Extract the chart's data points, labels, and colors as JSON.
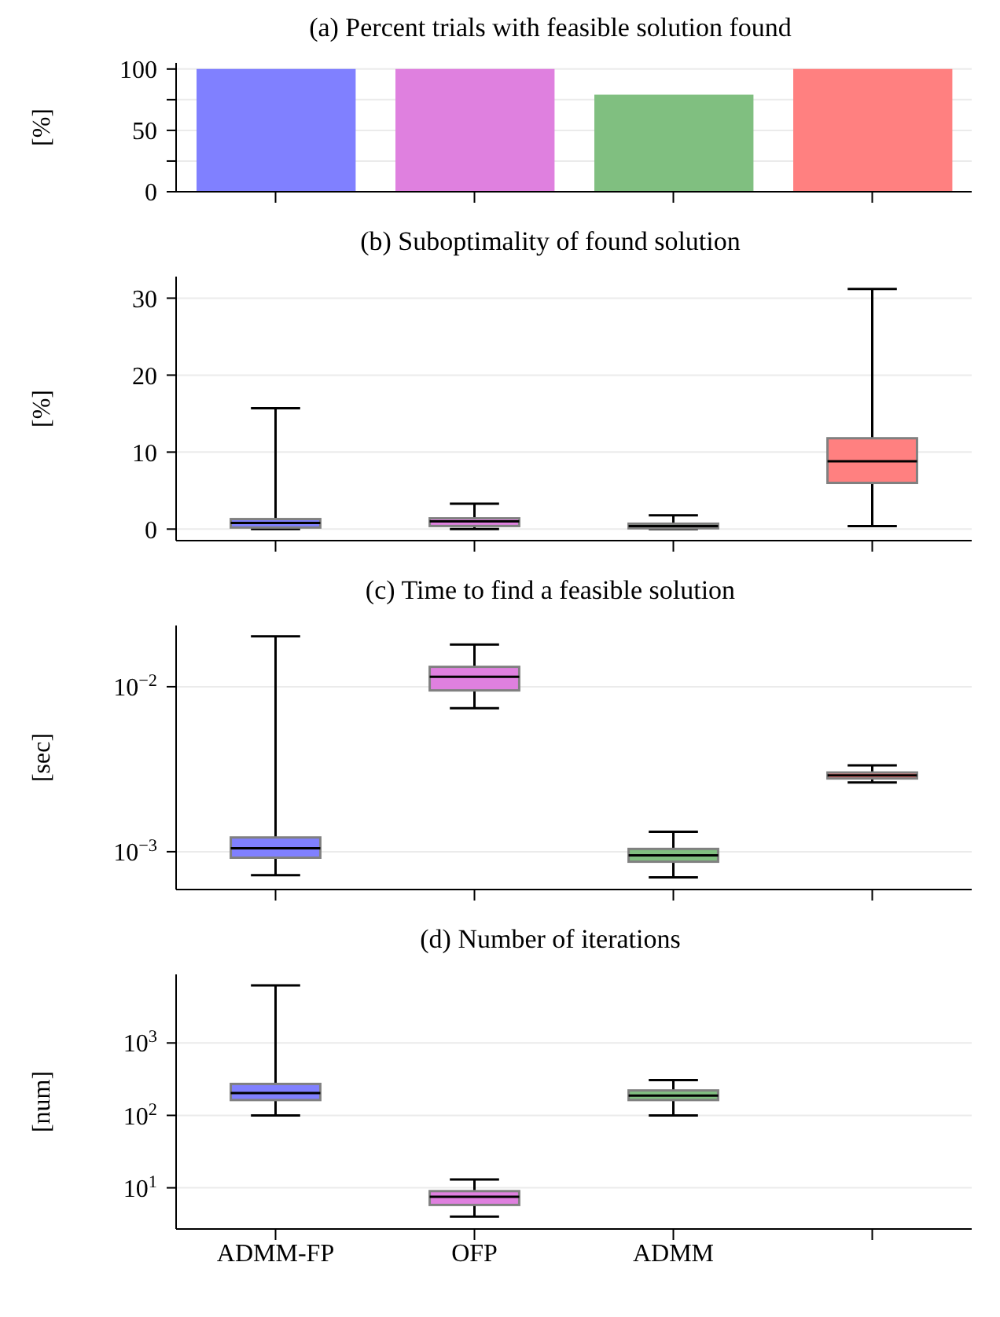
{
  "chart_data": [
    {
      "type": "bar",
      "title": "(a) Percent trials with feasible solution found",
      "ylabel": "[%]",
      "categories": [
        null,
        null,
        null,
        null
      ],
      "values": [
        100,
        100,
        79,
        100
      ],
      "colors": [
        "#8080ff",
        "#df80df",
        "#80bf80",
        "#ff8080"
      ],
      "ylim": [
        0,
        105
      ],
      "yticks": [
        0,
        {
          "value": 25,
          "label": null
        },
        50,
        {
          "value": 75,
          "label": null
        },
        100
      ],
      "grid": "y",
      "tick_labels": "y"
    },
    {
      "type": "box",
      "title": "(b) Suboptimality of found solution",
      "ylabel": "[%]",
      "categories": [
        null,
        null,
        null,
        null
      ],
      "colors": [
        "#8080ff",
        "#df80df",
        "#80bf80",
        "#ff8080"
      ],
      "boxes": [
        {
          "low": 0,
          "q1": 0.2,
          "median": 0.8,
          "q3": 1.3,
          "high": 15.7
        },
        {
          "low": 0,
          "q1": 0.4,
          "median": 1.0,
          "q3": 1.4,
          "high": 3.3
        },
        {
          "low": 0,
          "q1": 0.1,
          "median": 0.4,
          "q3": 0.7,
          "high": 1.8
        },
        {
          "low": 0.4,
          "q1": 6.0,
          "median": 8.8,
          "q3": 11.8,
          "high": 31.2
        }
      ],
      "ylim": [
        -1.5,
        32.8
      ],
      "yticks": [
        0,
        10,
        20,
        30
      ],
      "grid": "y",
      "tick_labels": "y"
    },
    {
      "type": "box",
      "title": "(c) Time to find a feasible solution",
      "ylabel": "[sec]",
      "categories": [
        null,
        null,
        null,
        null
      ],
      "colors": [
        "#8080ff",
        "#df80df",
        "#80bf80",
        "#ff8080"
      ],
      "boxes": [
        {
          "low": 0.00072,
          "q1": 0.00092,
          "median": 0.00105,
          "q3": 0.00122,
          "high": 0.0202
        },
        {
          "low": 0.0074,
          "q1": 0.0095,
          "median": 0.0115,
          "q3": 0.0132,
          "high": 0.018
        },
        {
          "low": 0.0007,
          "q1": 0.00087,
          "median": 0.00095,
          "q3": 0.00104,
          "high": 0.00132
        },
        {
          "low": 0.00263,
          "q1": 0.00278,
          "median": 0.0029,
          "q3": 0.00302,
          "high": 0.00334
        }
      ],
      "log": true,
      "ylim": [
        0.00059,
        0.0235
      ],
      "yticks": [
        {
          "value": 0.001,
          "label": "10$^{−3}$"
        },
        {
          "value": 0.01,
          "label": "10$^{−2}$"
        }
      ],
      "grid": "y",
      "tick_labels": "y"
    },
    {
      "type": "box",
      "title": "(d) Number of iterations",
      "ylabel": "[num]",
      "categories": [
        "ADMM-FP",
        "OFP",
        "ADMM",
        null
      ],
      "boxes": [
        {
          "low": 100,
          "q1": 163,
          "median": 204,
          "q3": 272,
          "high": 6250
        },
        {
          "low": 4.0,
          "q1": 5.8,
          "median": 7.5,
          "q3": 9.0,
          "high": 13
        },
        {
          "low": 100,
          "q1": 163,
          "median": 188,
          "q3": 221,
          "high": 307
        },
        null
      ],
      "colors": [
        "#8080ff",
        "#df80df",
        "#80bf80",
        null
      ],
      "log": true,
      "ylim": [
        2.7,
        8850
      ],
      "yticks": [
        {
          "value": 10,
          "label": "10$^{1}$"
        },
        {
          "value": 100,
          "label": "10$^{2}$"
        },
        {
          "value": 1000,
          "label": "10$^{3}$"
        }
      ],
      "grid": "y"
    }
  ]
}
